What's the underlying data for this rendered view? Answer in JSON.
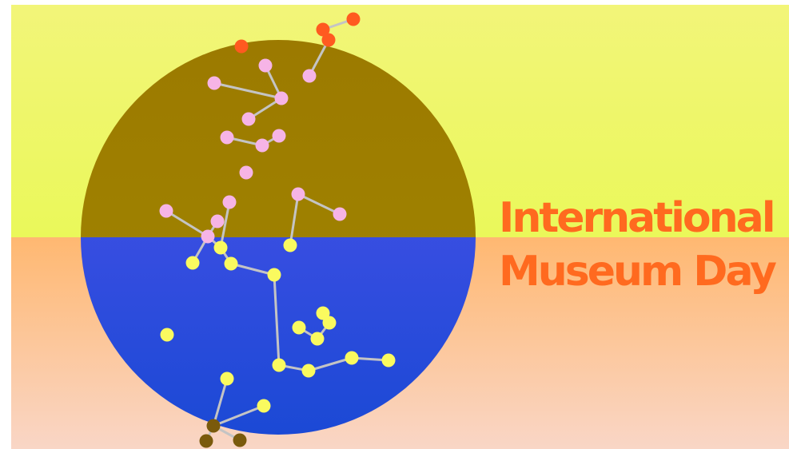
{
  "title": {
    "line1": "International",
    "line2": "Museum Day"
  },
  "colors": {
    "top_band": "#f4f775",
    "bottom_band": "#fbb97a",
    "disc_top": "#9e7d00",
    "disc_bottom": "#1d4bd8",
    "disc_bottom_edge": "#8a45ff",
    "title": "#ff6a1f",
    "dot_pink": "#f6b4e6",
    "dot_yellow": "#fafa5f",
    "dot_red": "#ff5a20",
    "dot_olive": "#7a5a0c",
    "link": "#c4c4c4"
  }
}
